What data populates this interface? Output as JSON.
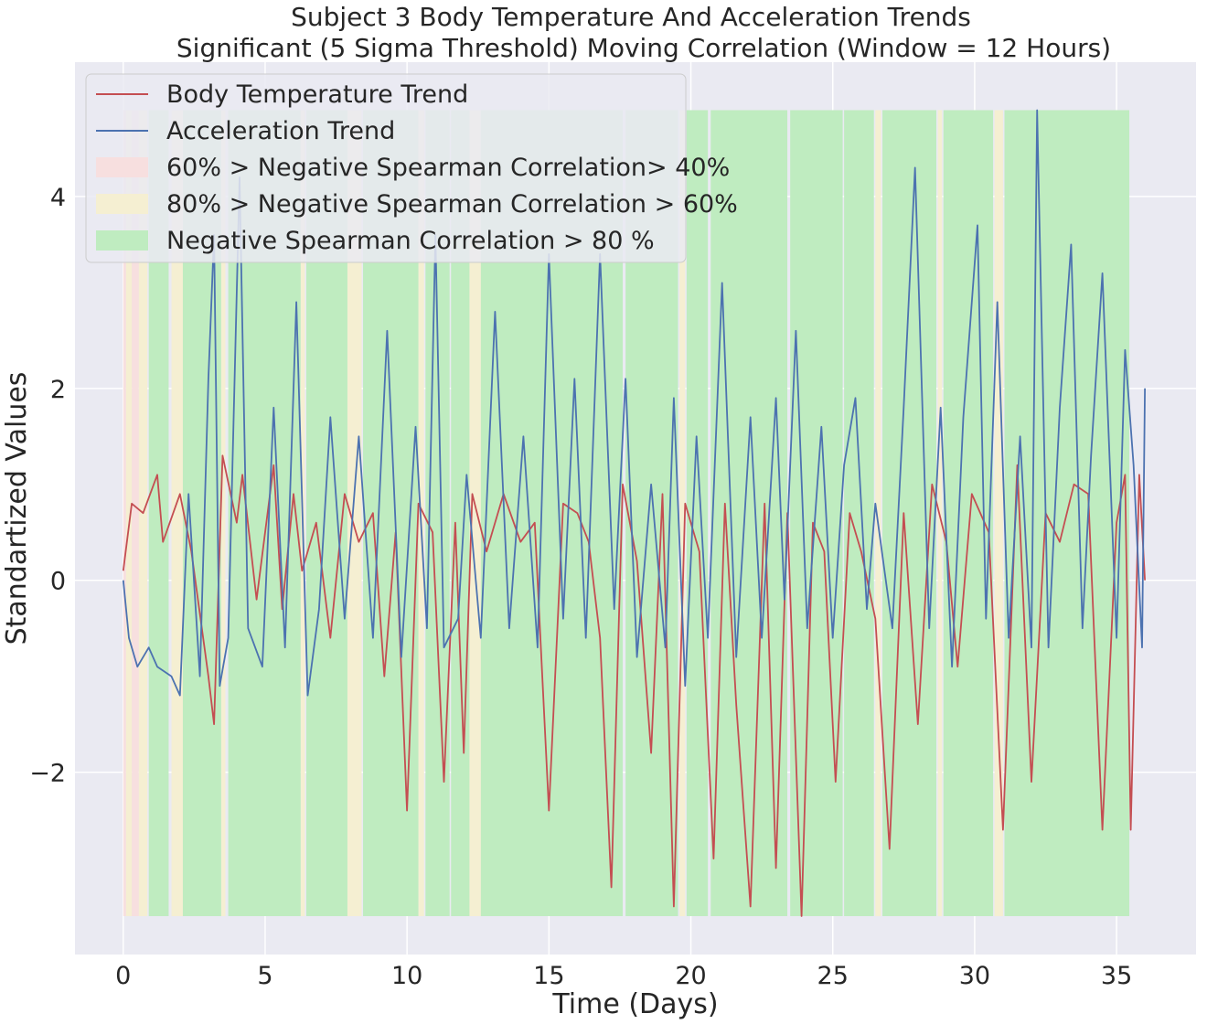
{
  "chart_data": {
    "type": "line",
    "title": [
      "Subject 3 Body Temperature And Acceleration Trends",
      "Significant (5 Sigma Threshold) Moving Correlation (Window = 12 Hours)"
    ],
    "xlabel": "Time (Days)",
    "ylabel": "Standartized Values",
    "xlim": [
      -1.7,
      37.8
    ],
    "ylim": [
      -3.9,
      5.4
    ],
    "xticks": [
      0,
      5,
      10,
      15,
      20,
      25,
      30,
      35
    ],
    "yticks": [
      -2,
      0,
      2,
      4
    ],
    "ytick_labels": [
      "−2",
      "0",
      "2",
      "4"
    ],
    "grid": true,
    "legend_position": "upper left",
    "colors": {
      "background": "#eaeaf2",
      "grid": "#ffffff",
      "temperature": "#c44e52",
      "acceleration": "#4c72b0",
      "band_40_60": "#f7dfdf",
      "band_60_80": "#f5efd2",
      "band_80": "#bfecc0"
    },
    "series": [
      {
        "name": "Body Temperature Trend",
        "color": "#c44e52",
        "x": [
          0,
          0.3,
          0.7,
          1.2,
          1.4,
          2.0,
          2.4,
          3.0,
          3.2,
          3.5,
          4.0,
          4.2,
          4.7,
          5.3,
          5.6,
          6.0,
          6.3,
          6.8,
          7.3,
          7.8,
          8.3,
          8.8,
          9.2,
          9.6,
          10.0,
          10.4,
          10.9,
          11.3,
          11.7,
          12.0,
          12.3,
          12.8,
          13.4,
          14.0,
          14.5,
          15.0,
          15.5,
          16.0,
          16.4,
          16.8,
          17.2,
          17.6,
          18.1,
          18.6,
          19.0,
          19.4,
          19.8,
          20.3,
          20.8,
          21.2,
          21.6,
          22.1,
          22.6,
          23.0,
          23.4,
          23.9,
          24.3,
          24.7,
          25.1,
          25.6,
          26.0,
          26.5,
          27.0,
          27.5,
          28.0,
          28.5,
          29.0,
          29.4,
          29.9,
          30.5,
          31.0,
          31.5,
          32.0,
          32.5,
          33.0,
          33.5,
          34.0,
          34.5,
          35.0,
          35.3,
          35.5,
          35.8,
          36.0
        ],
        "y": [
          0.1,
          0.8,
          0.7,
          1.1,
          0.4,
          0.9,
          0.3,
          -1.0,
          -1.5,
          1.3,
          0.6,
          1.1,
          -0.2,
          1.2,
          -0.3,
          0.9,
          0.1,
          0.6,
          -0.6,
          0.9,
          0.4,
          0.7,
          -1.0,
          0.5,
          -2.4,
          0.8,
          0.5,
          -2.1,
          0.6,
          -1.8,
          0.9,
          0.3,
          0.9,
          0.4,
          0.6,
          -2.4,
          0.8,
          0.7,
          0.4,
          -0.6,
          -3.2,
          1.0,
          0.2,
          -1.8,
          0.9,
          -3.4,
          0.8,
          0.3,
          -2.9,
          0.8,
          -1.3,
          -3.4,
          0.8,
          -3.0,
          0.7,
          -3.5,
          0.6,
          0.3,
          -2.1,
          0.7,
          0.3,
          -0.4,
          -2.8,
          0.7,
          -1.5,
          1.0,
          0.4,
          -0.9,
          0.9,
          0.5,
          -2.6,
          1.2,
          -2.1,
          0.7,
          0.4,
          1.0,
          0.9,
          -2.6,
          0.6,
          1.1,
          -2.6,
          1.1,
          0.0
        ]
      },
      {
        "name": "Acceleration Trend",
        "color": "#4c72b0",
        "x": [
          0,
          0.2,
          0.5,
          0.9,
          1.2,
          1.7,
          2.0,
          2.3,
          2.7,
          3.0,
          3.2,
          3.4,
          3.7,
          4.1,
          4.4,
          4.9,
          5.3,
          5.7,
          6.1,
          6.5,
          6.9,
          7.3,
          7.8,
          8.3,
          8.8,
          9.3,
          9.8,
          10.3,
          10.7,
          11.0,
          11.3,
          11.8,
          12.1,
          12.6,
          13.1,
          13.6,
          14.1,
          14.6,
          15.0,
          15.5,
          15.9,
          16.3,
          16.8,
          17.3,
          17.7,
          18.1,
          18.6,
          19.1,
          19.4,
          19.8,
          20.2,
          20.6,
          21.1,
          21.6,
          22.1,
          22.5,
          23.0,
          23.3,
          23.7,
          24.1,
          24.6,
          25.0,
          25.4,
          25.8,
          26.2,
          26.5,
          27.1,
          27.5,
          27.9,
          28.4,
          28.8,
          29.2,
          29.6,
          30.1,
          30.4,
          30.8,
          31.2,
          31.6,
          32.0,
          32.2,
          32.6,
          33.0,
          33.4,
          33.8,
          34.1,
          34.5,
          35.0,
          35.3,
          35.6,
          35.9,
          36.0
        ],
        "y": [
          0.0,
          -0.6,
          -0.9,
          -0.7,
          -0.9,
          -1.0,
          -1.2,
          0.9,
          -1.0,
          2.1,
          3.6,
          -1.1,
          -0.6,
          4.2,
          -0.5,
          -0.9,
          1.8,
          -0.7,
          2.9,
          -1.2,
          -0.3,
          1.7,
          -0.4,
          1.5,
          -0.6,
          2.6,
          -0.8,
          1.6,
          -0.5,
          3.6,
          -0.7,
          -0.4,
          1.1,
          -0.6,
          2.8,
          -0.5,
          1.5,
          -0.7,
          3.4,
          -0.4,
          2.1,
          -0.6,
          3.4,
          -0.3,
          2.1,
          -0.8,
          1.0,
          -0.7,
          1.9,
          -1.1,
          1.5,
          -0.6,
          3.1,
          -0.8,
          1.7,
          -0.6,
          1.9,
          -0.2,
          2.6,
          -0.5,
          1.6,
          -0.6,
          1.2,
          1.9,
          -0.3,
          0.8,
          -0.5,
          1.8,
          4.3,
          -0.5,
          1.8,
          -0.9,
          1.7,
          3.7,
          -0.4,
          2.9,
          -0.6,
          1.5,
          -0.7,
          4.9,
          -0.7,
          1.8,
          3.5,
          -0.5,
          1.3,
          3.2,
          -0.6,
          2.4,
          1.2,
          -0.7,
          2.0
        ]
      }
    ],
    "bands": [
      {
        "label": "60% > Negative Spearman Correlation> 40%",
        "color": "#f7dfdf",
        "ranges": [
          [
            0.0,
            0.1
          ],
          [
            0.3,
            0.55
          ]
        ]
      },
      {
        "label": "80% > Negative Spearman Correlation > 60%",
        "color": "#f5efd2",
        "ranges": [
          [
            0.1,
            0.3
          ],
          [
            0.55,
            0.85
          ],
          [
            1.7,
            2.1
          ],
          [
            3.45,
            3.6
          ],
          [
            6.25,
            6.4
          ],
          [
            7.9,
            8.4
          ],
          [
            10.4,
            10.6
          ],
          [
            12.2,
            12.6
          ],
          [
            19.6,
            19.8
          ],
          [
            26.5,
            26.7
          ],
          [
            28.7,
            28.85
          ],
          [
            30.7,
            31.0
          ]
        ],
        "y_top": 4.9
      },
      {
        "label": "Negative Spearman Correlation > 80 %",
        "color": "#bfecc0",
        "ranges": [
          [
            0.9,
            1.6
          ],
          [
            2.1,
            3.45
          ],
          [
            3.7,
            6.25
          ],
          [
            6.45,
            7.9
          ],
          [
            8.45,
            10.4
          ],
          [
            10.65,
            11.5
          ],
          [
            11.55,
            12.2
          ],
          [
            12.6,
            17.6
          ],
          [
            17.7,
            19.55
          ],
          [
            19.85,
            20.6
          ],
          [
            20.7,
            23.4
          ],
          [
            23.5,
            25.35
          ],
          [
            25.4,
            26.45
          ],
          [
            26.75,
            28.65
          ],
          [
            28.9,
            30.65
          ],
          [
            31.05,
            35.45
          ]
        ],
        "y_top": 4.9
      }
    ],
    "band_bottom": -3.5
  }
}
